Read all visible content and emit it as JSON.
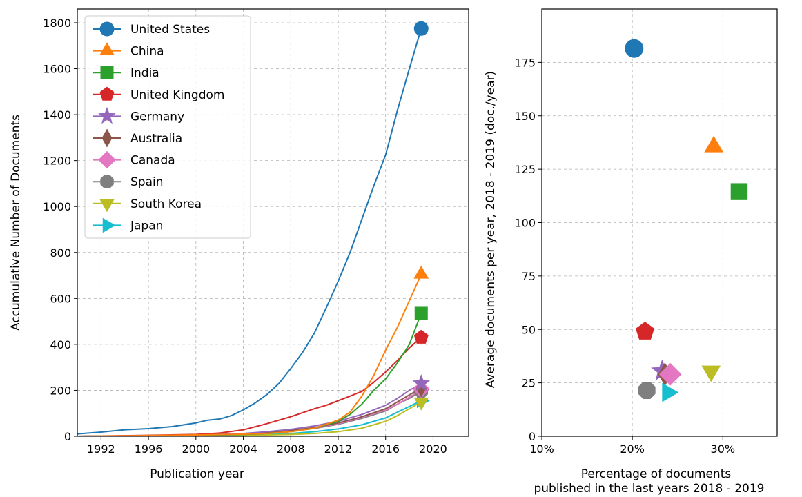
{
  "chart_data": [
    {
      "type": "line",
      "xlabel": "Publication year",
      "ylabel": "Accumulative Number of Documents",
      "xlim": [
        1990,
        2023
      ],
      "ylim": [
        0,
        1860
      ],
      "xticks": [
        1992,
        1996,
        2000,
        2004,
        2008,
        2012,
        2016,
        2020
      ],
      "yticks": [
        0,
        200,
        400,
        600,
        800,
        1000,
        1200,
        1400,
        1600,
        1800
      ],
      "grid": true,
      "legend_position": "top-left",
      "series": [
        {
          "name": "United States",
          "color": "#1f77b4",
          "marker": "circle",
          "x": [
            1990,
            1992,
            1994,
            1996,
            1998,
            2000,
            2001,
            2002,
            2003,
            2004,
            2005,
            2006,
            2007,
            2008,
            2009,
            2010,
            2011,
            2012,
            2013,
            2014,
            2015,
            2016,
            2017,
            2018,
            2019
          ],
          "y": [
            10,
            18,
            28,
            33,
            42,
            58,
            70,
            75,
            90,
            115,
            145,
            182,
            230,
            295,
            365,
            450,
            560,
            675,
            800,
            945,
            1090,
            1225,
            1420,
            1600,
            1775
          ]
        },
        {
          "name": "China",
          "color": "#ff7f0e",
          "marker": "triangle-up",
          "x": [
            1990,
            1996,
            2000,
            2004,
            2006,
            2008,
            2010,
            2012,
            2013,
            2014,
            2015,
            2016,
            2017,
            2018,
            2019
          ],
          "y": [
            0,
            3,
            6,
            9,
            12,
            20,
            35,
            70,
            105,
            175,
            265,
            375,
            475,
            590,
            705
          ]
        },
        {
          "name": "India",
          "color": "#2ca02c",
          "marker": "square",
          "x": [
            1990,
            1996,
            2000,
            2004,
            2006,
            2008,
            2010,
            2012,
            2013,
            2014,
            2015,
            2016,
            2017,
            2018,
            2019
          ],
          "y": [
            0,
            2,
            4,
            8,
            12,
            20,
            35,
            65,
            95,
            140,
            200,
            250,
            320,
            400,
            535
          ]
        },
        {
          "name": "United Kingdom",
          "color": "#d62728",
          "marker": "pentagon",
          "x": [
            1990,
            1996,
            2000,
            2002,
            2004,
            2006,
            2008,
            2010,
            2011,
            2012,
            2013,
            2014,
            2015,
            2016,
            2017,
            2018,
            2019
          ],
          "y": [
            0,
            4,
            8,
            14,
            28,
            55,
            85,
            120,
            135,
            155,
            175,
            195,
            235,
            280,
            330,
            385,
            430
          ]
        },
        {
          "name": "Germany",
          "color": "#9467bd",
          "marker": "star",
          "x": [
            1990,
            1996,
            2000,
            2004,
            2006,
            2008,
            2010,
            2012,
            2014,
            2016,
            2017,
            2018,
            2019
          ],
          "y": [
            0,
            3,
            6,
            12,
            20,
            30,
            45,
            65,
            95,
            135,
            165,
            200,
            230
          ]
        },
        {
          "name": "Australia",
          "color": "#8c564b",
          "marker": "thin-diamond",
          "x": [
            1990,
            1996,
            2000,
            2004,
            2006,
            2008,
            2010,
            2012,
            2014,
            2016,
            2017,
            2018,
            2019
          ],
          "y": [
            0,
            2,
            5,
            10,
            16,
            25,
            38,
            58,
            85,
            120,
            150,
            180,
            210
          ]
        },
        {
          "name": "Canada",
          "color": "#e377c2",
          "marker": "diamond",
          "x": [
            1990,
            1996,
            2000,
            2004,
            2006,
            2008,
            2010,
            2012,
            2014,
            2016,
            2017,
            2018,
            2019
          ],
          "y": [
            0,
            2,
            5,
            10,
            15,
            24,
            36,
            55,
            82,
            115,
            140,
            170,
            205
          ]
        },
        {
          "name": "Spain",
          "color": "#7f7f7f",
          "marker": "octagon",
          "x": [
            1990,
            1996,
            2000,
            2004,
            2006,
            2008,
            2010,
            2012,
            2014,
            2016,
            2017,
            2018,
            2019
          ],
          "y": [
            0,
            2,
            4,
            8,
            13,
            22,
            34,
            52,
            78,
            110,
            140,
            165,
            195
          ]
        },
        {
          "name": "South Korea",
          "color": "#bcbd22",
          "marker": "triangle-down",
          "x": [
            1990,
            1996,
            2000,
            2004,
            2008,
            2010,
            2012,
            2014,
            2016,
            2017,
            2018,
            2019
          ],
          "y": [
            0,
            1,
            2,
            4,
            8,
            12,
            20,
            35,
            65,
            90,
            120,
            150
          ]
        },
        {
          "name": "Japan",
          "color": "#17becf",
          "marker": "triangle-right",
          "x": [
            1990,
            1996,
            2000,
            2004,
            2008,
            2010,
            2012,
            2014,
            2016,
            2017,
            2018,
            2019
          ],
          "y": [
            0,
            1,
            3,
            6,
            12,
            20,
            32,
            50,
            80,
            105,
            130,
            155
          ]
        }
      ]
    },
    {
      "type": "scatter",
      "xlabel": "Percentage of documents",
      "xlabel2": "published in the last years 2018 - 2019",
      "ylabel": "Average documents per year, 2018 - 2019 (doc./year)",
      "xlim": [
        10,
        36
      ],
      "ylim": [
        0,
        200
      ],
      "xticks": [
        10,
        20,
        30
      ],
      "xtick_labels": [
        "10%",
        "20%",
        "30%"
      ],
      "yticks": [
        0,
        25,
        50,
        75,
        100,
        125,
        150,
        175
      ],
      "grid": true,
      "points": [
        {
          "name": "United States",
          "color": "#1f77b4",
          "marker": "circle",
          "x": 20.2,
          "y": 181.5
        },
        {
          "name": "China",
          "color": "#ff7f0e",
          "marker": "triangle-up",
          "x": 29.0,
          "y": 135.5
        },
        {
          "name": "India",
          "color": "#2ca02c",
          "marker": "square",
          "x": 31.8,
          "y": 114.5
        },
        {
          "name": "United Kingdom",
          "color": "#d62728",
          "marker": "pentagon",
          "x": 21.4,
          "y": 49
        },
        {
          "name": "Germany",
          "color": "#9467bd",
          "marker": "star",
          "x": 23.3,
          "y": 30.5
        },
        {
          "name": "Australia",
          "color": "#8c564b",
          "marker": "thin-diamond",
          "x": 23.6,
          "y": 29
        },
        {
          "name": "Canada",
          "color": "#e377c2",
          "marker": "diamond",
          "x": 24.2,
          "y": 29
        },
        {
          "name": "Spain",
          "color": "#7f7f7f",
          "marker": "octagon",
          "x": 21.6,
          "y": 21.5
        },
        {
          "name": "South Korea",
          "color": "#bcbd22",
          "marker": "triangle-down",
          "x": 28.7,
          "y": 30.5
        },
        {
          "name": "Japan",
          "color": "#17becf",
          "marker": "triangle-right",
          "x": 23.9,
          "y": 20.5
        }
      ]
    }
  ]
}
